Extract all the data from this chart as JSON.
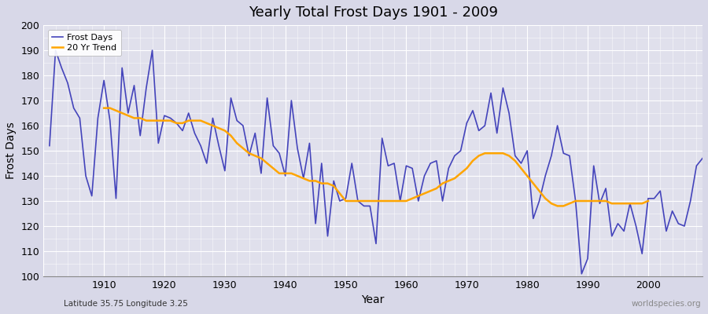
{
  "title": "Yearly Total Frost Days 1901 - 2009",
  "xlabel": "Year",
  "ylabel": "Frost Days",
  "subtitle": "Latitude 35.75 Longitude 3.25",
  "watermark": "worldspecies.org",
  "ylim": [
    100,
    200
  ],
  "xlim": [
    1900,
    2009
  ],
  "yticks": [
    100,
    110,
    120,
    130,
    140,
    150,
    160,
    170,
    180,
    190,
    200
  ],
  "line_color": "#4444bb",
  "trend_color": "#FFA500",
  "fig_bg_color": "#d8d8e8",
  "plot_bg_color": "#e0e0ec",
  "years": [
    1901,
    1902,
    1903,
    1904,
    1905,
    1906,
    1907,
    1908,
    1909,
    1910,
    1911,
    1912,
    1913,
    1914,
    1915,
    1916,
    1917,
    1918,
    1919,
    1920,
    1921,
    1922,
    1923,
    1924,
    1925,
    1926,
    1927,
    1928,
    1929,
    1930,
    1931,
    1932,
    1933,
    1934,
    1935,
    1936,
    1937,
    1938,
    1939,
    1940,
    1941,
    1942,
    1943,
    1944,
    1945,
    1946,
    1947,
    1948,
    1949,
    1950,
    1951,
    1952,
    1953,
    1954,
    1955,
    1956,
    1957,
    1958,
    1959,
    1960,
    1961,
    1962,
    1963,
    1964,
    1965,
    1966,
    1967,
    1968,
    1969,
    1970,
    1971,
    1972,
    1973,
    1974,
    1975,
    1976,
    1977,
    1978,
    1979,
    1980,
    1981,
    1982,
    1983,
    1984,
    1985,
    1986,
    1987,
    1988,
    1989,
    1990,
    1991,
    1992,
    1993,
    1994,
    1995,
    1996,
    1997,
    1998,
    1999,
    2000,
    2001,
    2002,
    2003,
    2004,
    2005,
    2006,
    2007,
    2008,
    2009
  ],
  "frost_days": [
    152,
    190,
    183,
    177,
    167,
    163,
    140,
    132,
    163,
    178,
    162,
    131,
    183,
    165,
    176,
    156,
    175,
    190,
    153,
    164,
    163,
    161,
    158,
    165,
    157,
    152,
    145,
    163,
    152,
    142,
    171,
    162,
    160,
    148,
    157,
    141,
    171,
    152,
    149,
    140,
    170,
    151,
    139,
    153,
    121,
    145,
    116,
    138,
    130,
    131,
    145,
    130,
    128,
    128,
    113,
    155,
    144,
    145,
    130,
    144,
    143,
    130,
    140,
    145,
    146,
    130,
    143,
    148,
    150,
    161,
    166,
    158,
    160,
    173,
    157,
    175,
    165,
    148,
    145,
    150,
    123,
    130,
    140,
    148,
    160,
    149,
    148,
    130,
    101,
    107,
    144,
    129,
    135,
    116,
    121,
    118,
    129,
    120,
    109,
    131,
    131,
    134,
    118,
    126,
    121,
    120,
    130,
    144,
    147
  ],
  "trend_years": [
    1910,
    1911,
    1912,
    1913,
    1914,
    1915,
    1916,
    1917,
    1918,
    1919,
    1920,
    1921,
    1922,
    1923,
    1924,
    1925,
    1926,
    1927,
    1928,
    1929,
    1930,
    1931,
    1932,
    1933,
    1934,
    1935,
    1936,
    1937,
    1938,
    1939,
    1940,
    1941,
    1942,
    1943,
    1944,
    1945,
    1946,
    1947,
    1948,
    1949,
    1950,
    1951,
    1952,
    1953,
    1954,
    1955,
    1956,
    1957,
    1958,
    1959,
    1960,
    1961,
    1962,
    1963,
    1964,
    1965,
    1966,
    1967,
    1968,
    1969,
    1970,
    1971,
    1972,
    1973,
    1974,
    1975,
    1976,
    1977,
    1978,
    1979,
    1980,
    1981,
    1982,
    1983,
    1984,
    1985,
    1986,
    1987,
    1988,
    1989,
    1990,
    1991,
    1992,
    1993,
    1994,
    1995,
    1996,
    1997,
    1998,
    1999,
    2000
  ],
  "trend_values": [
    167,
    167,
    166,
    165,
    164,
    163,
    163,
    162,
    162,
    162,
    162,
    162,
    161,
    161,
    162,
    162,
    162,
    161,
    160,
    159,
    158,
    156,
    153,
    151,
    149,
    148,
    147,
    145,
    143,
    141,
    141,
    141,
    140,
    139,
    138,
    138,
    137,
    137,
    136,
    133,
    130,
    130,
    130,
    130,
    130,
    130,
    130,
    130,
    130,
    130,
    130,
    131,
    132,
    133,
    134,
    135,
    137,
    138,
    139,
    141,
    143,
    146,
    148,
    149,
    149,
    149,
    149,
    148,
    146,
    143,
    140,
    137,
    134,
    131,
    129,
    128,
    128,
    129,
    130,
    130,
    130,
    130,
    130,
    130,
    129,
    129,
    129,
    129,
    129,
    129,
    130
  ]
}
